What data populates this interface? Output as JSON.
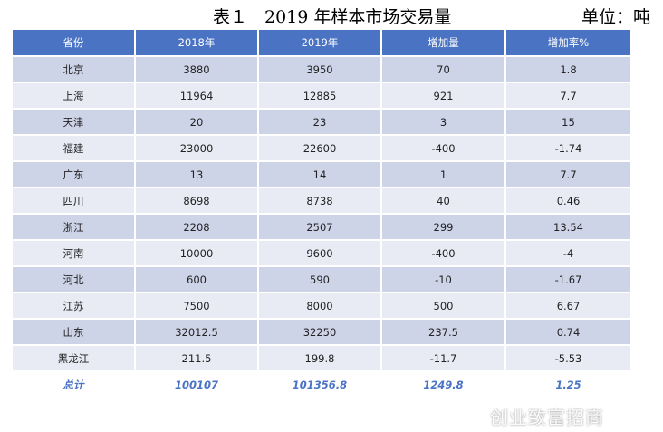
{
  "title": "表１　2019 年样本市场交易量",
  "unit": "单位：吨",
  "table": {
    "headers": [
      "省份",
      "2018年",
      "2019年",
      "增加量",
      "增加率%"
    ],
    "rows": [
      [
        "北京",
        "3880",
        "3950",
        "70",
        "1.8"
      ],
      [
        "上海",
        "11964",
        "12885",
        "921",
        "7.7"
      ],
      [
        "天津",
        "20",
        "23",
        "3",
        "15"
      ],
      [
        "福建",
        "23000",
        "22600",
        "-400",
        "-1.74"
      ],
      [
        "广东",
        "13",
        "14",
        "1",
        "7.7"
      ],
      [
        "四川",
        "8698",
        "8738",
        "40",
        "0.46"
      ],
      [
        "浙江",
        "2208",
        "2507",
        "299",
        "13.54"
      ],
      [
        "河南",
        "10000",
        "9600",
        "-400",
        "-4"
      ],
      [
        "河北",
        "600",
        "590",
        "-10",
        "-1.67"
      ],
      [
        "江苏",
        "7500",
        "8000",
        "500",
        "6.67"
      ],
      [
        "山东",
        "32012.5",
        "32250",
        "237.5",
        "0.74"
      ],
      [
        "黑龙江",
        "211.5",
        "199.8",
        "-11.7",
        "-5.53"
      ]
    ],
    "total": [
      "总计",
      "100107",
      "101356.8",
      "1249.8",
      "1.25"
    ]
  },
  "watermark": "创业致富招商",
  "colors": {
    "header": "#4a73c4",
    "row_dark": "#cdd4e8",
    "row_light": "#e8ebf4",
    "total_text": "#4a73c4"
  }
}
